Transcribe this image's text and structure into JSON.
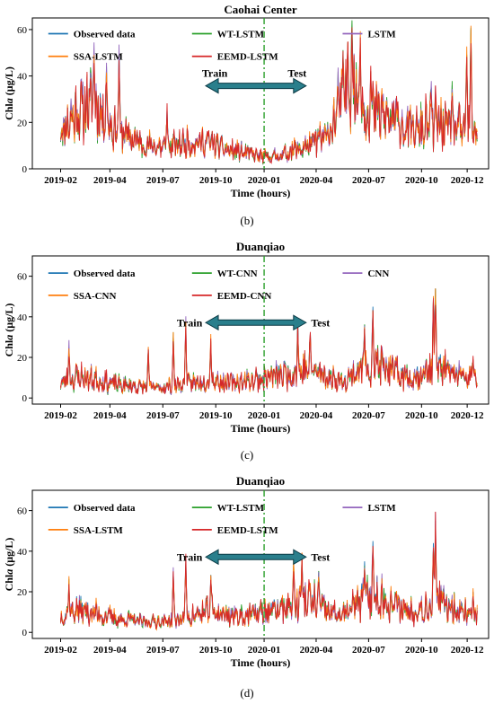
{
  "panels": [
    {
      "caption": "(b)",
      "chart_data": {
        "type": "line",
        "title": "Caohai Center",
        "xlabel": "Time (hours)",
        "ylabel_prefix": "Chl",
        "ylabel_italic": "a",
        "ylabel_suffix": " (μg/L)",
        "x_tick_labels": [
          "2019-02",
          "2019-04",
          "2019-07",
          "2019-10",
          "2020-01",
          "2020-04",
          "2020-07",
          "2020-10",
          "2020-12"
        ],
        "y_ticks": [
          0,
          20,
          40,
          60
        ],
        "ylim": [
          0,
          65
        ],
        "split_label_left": "Train",
        "split_label_right": "Test",
        "split_at": "2020-01",
        "legend": [
          "Observed data",
          "WT-LSTM",
          "LSTM",
          "SSA-LSTM",
          "EEMD-LSTM"
        ],
        "series": [
          {
            "name": "Observed data",
            "color": "#1f77b4"
          },
          {
            "name": "WT-LSTM",
            "color": "#2ca02c"
          },
          {
            "name": "LSTM",
            "color": "#9467bd"
          },
          {
            "name": "SSA-LSTM",
            "color": "#ff7f0e"
          },
          {
            "name": "EEMD-LSTM",
            "color": "#d62728"
          }
        ],
        "shape": [
          [
            0,
            16
          ],
          [
            0.04,
            24
          ],
          [
            0.08,
            28
          ],
          [
            0.12,
            18
          ],
          [
            0.16,
            14
          ],
          [
            0.2,
            10
          ],
          [
            0.26,
            9
          ],
          [
            0.3,
            11
          ],
          [
            0.36,
            11
          ],
          [
            0.4,
            8
          ],
          [
            0.44,
            7
          ],
          [
            0.48,
            5
          ],
          [
            0.52,
            5
          ],
          [
            0.56,
            8
          ],
          [
            0.6,
            10
          ],
          [
            0.64,
            14
          ],
          [
            0.66,
            22
          ],
          [
            0.68,
            32
          ],
          [
            0.7,
            36
          ],
          [
            0.72,
            26
          ],
          [
            0.74,
            24
          ],
          [
            0.78,
            22
          ],
          [
            0.82,
            18
          ],
          [
            0.86,
            16
          ],
          [
            0.9,
            20
          ],
          [
            0.93,
            17
          ],
          [
            0.96,
            16
          ],
          [
            1,
            17
          ]
        ],
        "noise": 0.45,
        "spikes": [
          [
            0.08,
            50
          ],
          [
            0.11,
            44
          ],
          [
            0.14,
            51
          ],
          [
            0.255,
            26
          ],
          [
            0.7,
            59
          ],
          [
            0.69,
            52
          ],
          [
            0.72,
            54
          ],
          [
            0.745,
            42
          ],
          [
            0.89,
            35
          ],
          [
            0.94,
            36
          ],
          [
            0.985,
            60
          ],
          [
            0.975,
            48
          ]
        ],
        "seed": 11
      }
    },
    {
      "caption": "(c)",
      "chart_data": {
        "type": "line",
        "title": "Duanqiao",
        "xlabel": "Time (hours)",
        "ylabel_prefix": "Chl",
        "ylabel_italic": "a",
        "ylabel_suffix": " (μg/L)",
        "x_tick_labels": [
          "2019-02",
          "2019-04",
          "2019-07",
          "2019-10",
          "2020-01",
          "2020-04",
          "2020-07",
          "2020-10",
          "2020-12"
        ],
        "y_ticks": [
          0,
          20,
          40,
          60
        ],
        "ylim": [
          -3,
          70
        ],
        "split_label_left": "Train",
        "split_label_right": "Test",
        "split_at": "2020-01",
        "legend": [
          "Observed data",
          "WT-CNN",
          "CNN",
          "SSA-CNN",
          "EEMD-CNN"
        ],
        "series": [
          {
            "name": "Observed data",
            "color": "#1f77b4"
          },
          {
            "name": "WT-CNN",
            "color": "#2ca02c"
          },
          {
            "name": "CNN",
            "color": "#9467bd"
          },
          {
            "name": "SSA-CNN",
            "color": "#ff7f0e"
          },
          {
            "name": "EEMD-CNN",
            "color": "#d62728"
          }
        ],
        "shape": [
          [
            0,
            7
          ],
          [
            0.04,
            10
          ],
          [
            0.08,
            9
          ],
          [
            0.12,
            7
          ],
          [
            0.16,
            6
          ],
          [
            0.2,
            5
          ],
          [
            0.24,
            5
          ],
          [
            0.28,
            6
          ],
          [
            0.32,
            7
          ],
          [
            0.36,
            9
          ],
          [
            0.4,
            7
          ],
          [
            0.44,
            8
          ],
          [
            0.48,
            9
          ],
          [
            0.52,
            11
          ],
          [
            0.56,
            12
          ],
          [
            0.6,
            14
          ],
          [
            0.64,
            10
          ],
          [
            0.68,
            8
          ],
          [
            0.72,
            14
          ],
          [
            0.76,
            16
          ],
          [
            0.8,
            12
          ],
          [
            0.84,
            10
          ],
          [
            0.88,
            12
          ],
          [
            0.92,
            14
          ],
          [
            0.96,
            10
          ],
          [
            1,
            9
          ]
        ],
        "noise": 0.55,
        "spikes": [
          [
            0.02,
            25
          ],
          [
            0.21,
            24
          ],
          [
            0.27,
            30
          ],
          [
            0.3,
            36
          ],
          [
            0.36,
            28
          ],
          [
            0.57,
            38
          ],
          [
            0.6,
            32
          ],
          [
            0.75,
            45
          ],
          [
            0.73,
            36
          ],
          [
            0.9,
            54
          ],
          [
            0.895,
            50
          ],
          [
            0.99,
            19
          ]
        ],
        "seed": 23
      }
    },
    {
      "caption": "(d)",
      "chart_data": {
        "type": "line",
        "title": "Duanqiao",
        "xlabel": "Time (hours)",
        "ylabel_prefix": "Chl",
        "ylabel_italic": "a",
        "ylabel_suffix": " (μg/L)",
        "x_tick_labels": [
          "2019-02",
          "2019-04",
          "2019-07",
          "2019-10",
          "2020-01",
          "2020-04",
          "2020-07",
          "2020-10",
          "2020-12"
        ],
        "y_ticks": [
          0,
          20,
          40,
          60
        ],
        "ylim": [
          -3,
          70
        ],
        "split_label_left": "Train",
        "split_label_right": "Test",
        "split_at": "2020-01",
        "legend": [
          "Observed data",
          "WT-LSTM",
          "LSTM",
          "SSA-LSTM",
          "EEMD-LSTM"
        ],
        "series": [
          {
            "name": "Observed data",
            "color": "#1f77b4"
          },
          {
            "name": "WT-LSTM",
            "color": "#2ca02c"
          },
          {
            "name": "LSTM",
            "color": "#9467bd"
          },
          {
            "name": "SSA-LSTM",
            "color": "#ff7f0e"
          },
          {
            "name": "EEMD-LSTM",
            "color": "#d62728"
          }
        ],
        "shape": [
          [
            0,
            7
          ],
          [
            0.04,
            11
          ],
          [
            0.08,
            9
          ],
          [
            0.12,
            7
          ],
          [
            0.16,
            6
          ],
          [
            0.2,
            5
          ],
          [
            0.24,
            5
          ],
          [
            0.28,
            6
          ],
          [
            0.32,
            8
          ],
          [
            0.36,
            10
          ],
          [
            0.4,
            8
          ],
          [
            0.44,
            8
          ],
          [
            0.48,
            9
          ],
          [
            0.52,
            11
          ],
          [
            0.56,
            13
          ],
          [
            0.6,
            15
          ],
          [
            0.64,
            10
          ],
          [
            0.68,
            8
          ],
          [
            0.72,
            15
          ],
          [
            0.76,
            17
          ],
          [
            0.8,
            13
          ],
          [
            0.84,
            10
          ],
          [
            0.88,
            12
          ],
          [
            0.92,
            15
          ],
          [
            0.96,
            10
          ],
          [
            1,
            9
          ]
        ],
        "noise": 0.55,
        "spikes": [
          [
            0.02,
            24
          ],
          [
            0.27,
            30
          ],
          [
            0.3,
            36
          ],
          [
            0.36,
            27
          ],
          [
            0.56,
            33
          ],
          [
            0.58,
            38
          ],
          [
            0.62,
            30
          ],
          [
            0.75,
            45
          ],
          [
            0.73,
            35
          ],
          [
            0.9,
            55
          ],
          [
            0.895,
            44
          ],
          [
            0.99,
            20
          ]
        ],
        "seed": 37
      }
    }
  ]
}
